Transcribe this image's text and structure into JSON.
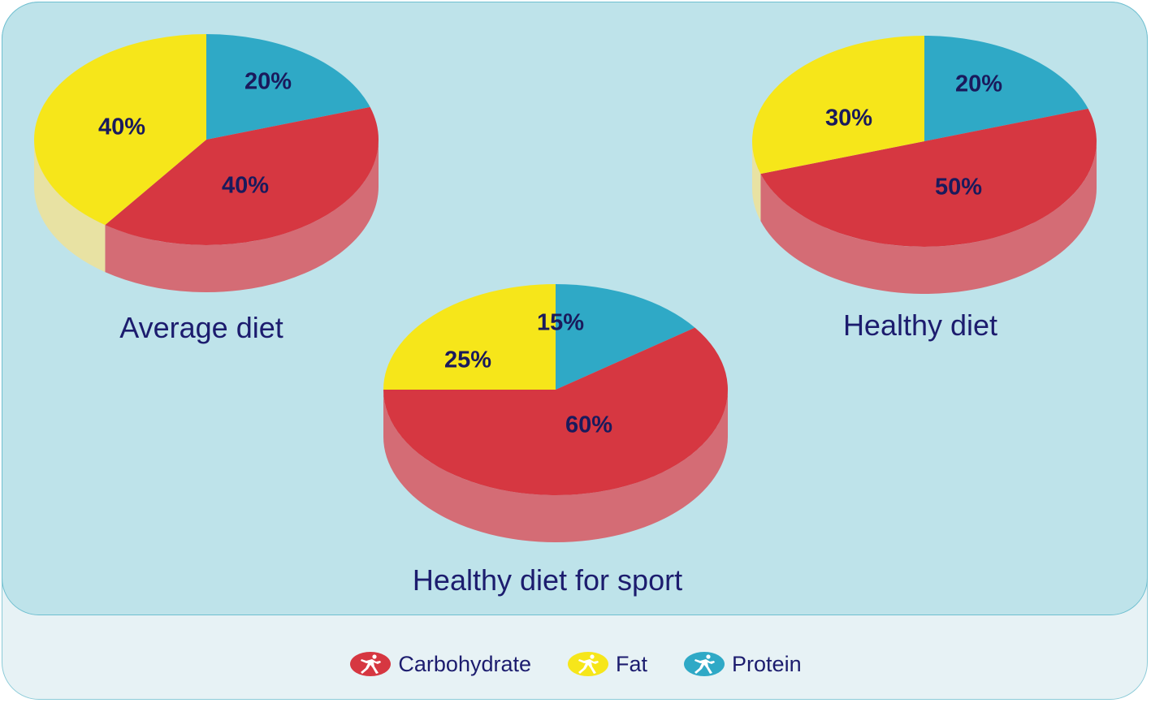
{
  "chart_data": [
    {
      "type": "pie",
      "title": "Average diet",
      "categories": [
        "Carbohydrate",
        "Fat",
        "Protein"
      ],
      "values": [
        40,
        40,
        20
      ],
      "labels": [
        "40%",
        "40%",
        "20%"
      ]
    },
    {
      "type": "pie",
      "title": "Healthy diet for sport",
      "categories": [
        "Carbohydrate",
        "Fat",
        "Protein"
      ],
      "values": [
        60,
        25,
        15
      ],
      "labels": [
        "60%",
        "25%",
        "15%"
      ]
    },
    {
      "type": "pie",
      "title": "Healthy diet",
      "categories": [
        "Carbohydrate",
        "Fat",
        "Protein"
      ],
      "values": [
        50,
        30,
        20
      ],
      "labels": [
        "50%",
        "30%",
        "20%"
      ]
    }
  ],
  "legend": {
    "placement": "bottom",
    "items": [
      {
        "label": "Carbohydrate",
        "color": "#d63741",
        "icon": "runner-icon"
      },
      {
        "label": "Fat",
        "color": "#f6e61a",
        "icon": "runner-icon"
      },
      {
        "label": "Protein",
        "color": "#2fa9c6",
        "icon": "runner-icon"
      }
    ]
  },
  "colors": {
    "Carbohydrate": "#d63741",
    "Fat": "#f6e61a",
    "Protein": "#2fa9c6",
    "Carbohydrate_side": "#d46c75",
    "Fat_side": "#e8e2a3",
    "Protein_side": "#7cc2d4"
  }
}
